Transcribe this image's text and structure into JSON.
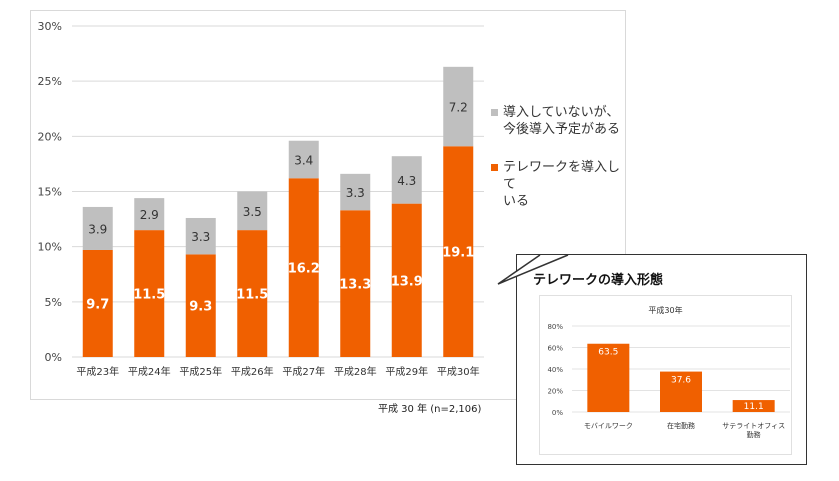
{
  "main_chart": {
    "chart_data": {
      "type": "bar",
      "stacked": true,
      "categories": [
        "平成23年",
        "平成24年",
        "平成25年",
        "平成26年",
        "平成27年",
        "平成28年",
        "平成29年",
        "平成30年"
      ],
      "series": [
        {
          "name": "テレワークを導入している",
          "values": [
            9.7,
            11.5,
            9.3,
            11.5,
            16.2,
            13.3,
            13.9,
            19.1
          ],
          "color": "#f06000"
        },
        {
          "name": "導入していないが、今後導入予定がある",
          "values": [
            3.9,
            2.9,
            3.3,
            3.5,
            3.4,
            3.3,
            4.3,
            7.2
          ],
          "color": "#bfbfbf"
        }
      ],
      "ylim": [
        0,
        30
      ],
      "yticks": [
        "0%",
        "5%",
        "10%",
        "15%",
        "20%",
        "25%",
        "30%"
      ],
      "grid": true,
      "legend_position": "right"
    },
    "legend": [
      {
        "label_lines": [
          "導入していないが、",
          "今後導入予定がある"
        ],
        "color": "#bfbfbf"
      },
      {
        "label_lines": [
          "テレワークを導入して",
          "いる"
        ],
        "color": "#f06000"
      }
    ]
  },
  "footnote": "平成 30 年 (n=2,106)",
  "inset": {
    "title": "テレワークの導入形態",
    "chart_data": {
      "type": "bar",
      "title": "平成30年",
      "categories": [
        [
          "モバイルワーク"
        ],
        [
          "在宅勤務"
        ],
        [
          "サテライトオフィス",
          "勤務"
        ]
      ],
      "values": [
        63.5,
        37.6,
        11.1
      ],
      "value_labels": [
        "63.5",
        "37.6",
        "11.1"
      ],
      "ylim": [
        0,
        80
      ],
      "yticks": [
        "0%",
        "20%",
        "40%",
        "60%",
        "80%"
      ],
      "color": "#f06000",
      "grid": true
    }
  }
}
